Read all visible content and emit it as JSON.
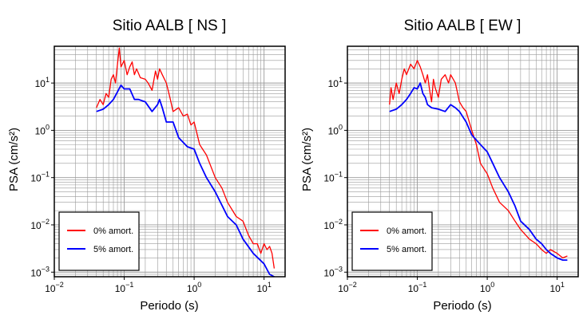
{
  "colors": {
    "series_0": "#ff0000",
    "series_5": "#0000ff",
    "grid": "#9a9a9a",
    "frame": "#000000"
  },
  "chart_data": [
    {
      "type": "line",
      "title": "Sitio AALB [ NS ]",
      "xlabel": "Periodo (s)",
      "ylabel": "PSA (cm/s²)",
      "xscale": "log",
      "yscale": "log",
      "xlim": [
        0.01,
        20
      ],
      "ylim": [
        0.0008,
        60
      ],
      "x_ticks": [
        "10^-2",
        "10^-1",
        "10^0",
        "10^1"
      ],
      "y_ticks": [
        "10^-3",
        "10^-2",
        "10^-1",
        "10^0",
        "10^1"
      ],
      "grid": true,
      "legend_position": "bottom-left",
      "series": [
        {
          "name": "0% amort.",
          "color": "#ff0000",
          "x": [
            0.04,
            0.045,
            0.05,
            0.055,
            0.06,
            0.065,
            0.07,
            0.075,
            0.08,
            0.085,
            0.09,
            0.1,
            0.11,
            0.12,
            0.13,
            0.14,
            0.15,
            0.17,
            0.2,
            0.22,
            0.25,
            0.28,
            0.3,
            0.32,
            0.35,
            0.4,
            0.45,
            0.5,
            0.6,
            0.7,
            0.8,
            0.9,
            1.0,
            1.2,
            1.5,
            2.0,
            2.5,
            3.0,
            4.0,
            5.0,
            6.0,
            7.0,
            8.0,
            9.0,
            10.0,
            11.0,
            12.0,
            13.0,
            14.0
          ],
          "y": [
            3.0,
            4.5,
            3.5,
            6.0,
            5.0,
            12.0,
            15.0,
            10.0,
            25.0,
            55.0,
            22.0,
            30.0,
            15.0,
            22.0,
            28.0,
            15.0,
            20.0,
            13.0,
            12.0,
            10.0,
            7.0,
            18.0,
            12.0,
            20.0,
            15.0,
            10.0,
            5.0,
            2.5,
            3.0,
            2.0,
            2.2,
            1.3,
            1.5,
            0.5,
            0.3,
            0.1,
            0.06,
            0.03,
            0.015,
            0.012,
            0.006,
            0.004,
            0.004,
            0.0025,
            0.004,
            0.003,
            0.0035,
            0.0025,
            0.0012
          ]
        },
        {
          "name": "5% amort.",
          "color": "#0000ff",
          "x": [
            0.04,
            0.05,
            0.06,
            0.07,
            0.08,
            0.09,
            0.1,
            0.12,
            0.14,
            0.16,
            0.2,
            0.25,
            0.3,
            0.32,
            0.35,
            0.4,
            0.5,
            0.6,
            0.8,
            1.0,
            1.2,
            1.5,
            2.0,
            3.0,
            4.0,
            5.0,
            7.0,
            10.0,
            12.0,
            14.0
          ],
          "y": [
            2.5,
            2.8,
            3.5,
            4.5,
            6.5,
            9.0,
            7.5,
            7.5,
            4.5,
            4.5,
            4.0,
            2.5,
            3.5,
            4.5,
            3.0,
            1.5,
            1.5,
            0.7,
            0.45,
            0.4,
            0.2,
            0.1,
            0.05,
            0.015,
            0.01,
            0.005,
            0.0025,
            0.0015,
            0.0009,
            0.0008
          ]
        }
      ]
    },
    {
      "type": "line",
      "title": "Sitio AALB [ EW ]",
      "xlabel": "Periodo (s)",
      "ylabel": "PSA (cm/s²)",
      "xscale": "log",
      "yscale": "log",
      "xlim": [
        0.01,
        20
      ],
      "ylim": [
        0.0008,
        60
      ],
      "x_ticks": [
        "10^-2",
        "10^-1",
        "10^0",
        "10^1"
      ],
      "y_ticks": [
        "10^-3",
        "10^-2",
        "10^-1",
        "10^0",
        "10^1"
      ],
      "grid": true,
      "legend_position": "bottom-left",
      "series": [
        {
          "name": "0% amort.",
          "color": "#ff0000",
          "x": [
            0.04,
            0.042,
            0.045,
            0.05,
            0.055,
            0.06,
            0.065,
            0.07,
            0.08,
            0.09,
            0.1,
            0.11,
            0.12,
            0.13,
            0.14,
            0.15,
            0.16,
            0.17,
            0.18,
            0.2,
            0.22,
            0.25,
            0.28,
            0.3,
            0.35,
            0.4,
            0.45,
            0.5,
            0.6,
            0.7,
            0.8,
            1.0,
            1.2,
            1.5,
            2.0,
            2.5,
            3.0,
            4.0,
            5.0,
            6.0,
            7.0,
            8.0,
            10.0,
            12.0,
            14.0
          ],
          "y": [
            3.5,
            8.0,
            4.5,
            10.0,
            6.0,
            12.0,
            20.0,
            15.0,
            25.0,
            20.0,
            30.0,
            22.0,
            15.0,
            10.0,
            15.0,
            7.0,
            4.0,
            12.0,
            8.0,
            5.0,
            12.0,
            15.0,
            10.0,
            15.0,
            10.0,
            4.0,
            3.0,
            2.5,
            1.0,
            0.5,
            0.2,
            0.12,
            0.06,
            0.03,
            0.02,
            0.012,
            0.008,
            0.005,
            0.004,
            0.003,
            0.0025,
            0.003,
            0.0025,
            0.002,
            0.0022
          ]
        },
        {
          "name": "5% amort.",
          "color": "#0000ff",
          "x": [
            0.04,
            0.05,
            0.06,
            0.07,
            0.08,
            0.09,
            0.1,
            0.11,
            0.12,
            0.13,
            0.14,
            0.16,
            0.2,
            0.25,
            0.3,
            0.35,
            0.4,
            0.5,
            0.6,
            0.8,
            1.0,
            1.2,
            1.5,
            2.0,
            2.5,
            3.0,
            4.0,
            5.0,
            6.0,
            7.0,
            8.0,
            10.0,
            12.0,
            14.0
          ],
          "y": [
            2.5,
            2.8,
            3.5,
            4.5,
            6.0,
            8.0,
            7.5,
            10.0,
            6.0,
            5.0,
            3.5,
            3.0,
            2.8,
            2.5,
            3.5,
            3.0,
            2.5,
            1.5,
            0.8,
            0.5,
            0.35,
            0.2,
            0.1,
            0.05,
            0.025,
            0.012,
            0.008,
            0.005,
            0.004,
            0.003,
            0.0025,
            0.002,
            0.0018,
            0.0018
          ]
        }
      ]
    }
  ]
}
